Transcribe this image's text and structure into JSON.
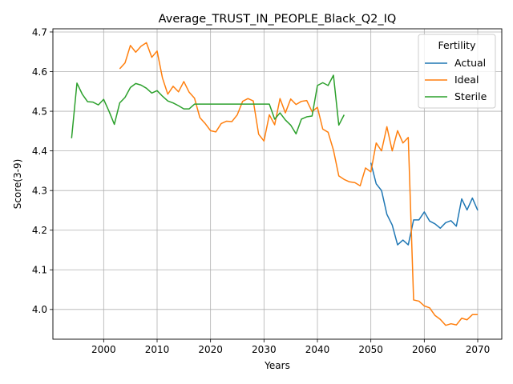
{
  "chart_data": {
    "type": "line",
    "title": "Average_TRUST_IN_PEOPLE_Black_Q2_IQ",
    "xlabel": "Years",
    "ylabel": "Score(3-9)",
    "xlim": [
      1990.5,
      2074.5
    ],
    "ylim": [
      3.925,
      4.708
    ],
    "xticks": [
      2000,
      2010,
      2020,
      2030,
      2040,
      2050,
      2060,
      2070
    ],
    "yticks": [
      4.0,
      4.1,
      4.2,
      4.3,
      4.4,
      4.5,
      4.6,
      4.7
    ],
    "xtick_labels": [
      "2000",
      "2010",
      "2020",
      "2030",
      "2040",
      "2050",
      "2060",
      "2070"
    ],
    "ytick_labels": [
      "4.0",
      "4.1",
      "4.2",
      "4.3",
      "4.4",
      "4.5",
      "4.6",
      "4.7"
    ],
    "grid": true,
    "legend": {
      "title": "Fertility",
      "placement": "top-right"
    },
    "series": [
      {
        "name": "Actual",
        "color": "#1f77b4",
        "x": [
          2050,
          2051,
          2052,
          2053,
          2054,
          2055,
          2056,
          2057,
          2058,
          2059,
          2060,
          2061,
          2062,
          2063,
          2064,
          2065,
          2066,
          2067,
          2068,
          2069,
          2070
        ],
        "y": [
          4.37,
          4.317,
          4.3,
          4.24,
          4.213,
          4.163,
          4.175,
          4.163,
          4.226,
          4.226,
          4.246,
          4.223,
          4.216,
          4.205,
          4.219,
          4.224,
          4.21,
          4.279,
          4.251,
          4.281,
          4.25
        ]
      },
      {
        "name": "Ideal",
        "color": "#ff7f0e",
        "x": [
          2003,
          2004,
          2005,
          2006,
          2007,
          2008,
          2009,
          2010,
          2011,
          2012,
          2013,
          2014,
          2015,
          2016,
          2017,
          2018,
          2019,
          2020,
          2021,
          2022,
          2023,
          2024,
          2025,
          2026,
          2027,
          2028,
          2029,
          2030,
          2031,
          2032,
          2033,
          2034,
          2035,
          2036,
          2037,
          2038,
          2039,
          2040,
          2041,
          2042,
          2043,
          2044,
          2045,
          2046,
          2047,
          2048,
          2049,
          2050,
          2051,
          2052,
          2053,
          2054,
          2055,
          2056,
          2057,
          2058,
          2059,
          2060,
          2061,
          2062,
          2063,
          2064,
          2065,
          2066,
          2067,
          2068,
          2069,
          2070
        ],
        "y": [
          4.607,
          4.622,
          4.666,
          4.649,
          4.664,
          4.673,
          4.636,
          4.652,
          4.584,
          4.543,
          4.563,
          4.549,
          4.575,
          4.548,
          4.533,
          4.484,
          4.469,
          4.451,
          4.448,
          4.469,
          4.475,
          4.474,
          4.491,
          4.525,
          4.532,
          4.526,
          4.442,
          4.425,
          4.491,
          4.466,
          4.532,
          4.496,
          4.531,
          4.517,
          4.525,
          4.527,
          4.499,
          4.51,
          4.455,
          4.447,
          4.402,
          4.337,
          4.328,
          4.322,
          4.32,
          4.312,
          4.357,
          4.347,
          4.42,
          4.4,
          4.461,
          4.4,
          4.451,
          4.42,
          4.434,
          4.024,
          4.021,
          4.009,
          4.004,
          3.985,
          3.975,
          3.96,
          3.964,
          3.961,
          3.978,
          3.974,
          3.987,
          3.987
        ]
      },
      {
        "name": "Sterile",
        "color": "#2ca02c",
        "x": [
          1994,
          1995,
          1996,
          1997,
          1998,
          1999,
          2000,
          2001,
          2002,
          2003,
          2004,
          2005,
          2006,
          2007,
          2008,
          2009,
          2010,
          2011,
          2012,
          2013,
          2014,
          2015,
          2016,
          2017,
          2018,
          2019,
          2020,
          2021,
          2022,
          2023,
          2024,
          2025,
          2026,
          2027,
          2028,
          2029,
          2030,
          2031,
          2032,
          2033,
          2034,
          2035,
          2036,
          2037,
          2038,
          2039,
          2040,
          2041,
          2042,
          2043,
          2044,
          2045
        ],
        "y": [
          4.432,
          4.571,
          4.543,
          4.524,
          4.523,
          4.516,
          4.53,
          4.5,
          4.467,
          4.521,
          4.535,
          4.56,
          4.57,
          4.566,
          4.558,
          4.546,
          4.552,
          4.538,
          4.526,
          4.521,
          4.514,
          4.506,
          4.506,
          4.518,
          4.518,
          4.518,
          4.518,
          4.518,
          4.518,
          4.518,
          4.518,
          4.518,
          4.518,
          4.518,
          4.518,
          4.518,
          4.518,
          4.518,
          4.48,
          4.496,
          4.478,
          4.465,
          4.443,
          4.48,
          4.486,
          4.488,
          4.565,
          4.572,
          4.565,
          4.591,
          4.465,
          4.491
        ]
      }
    ]
  }
}
